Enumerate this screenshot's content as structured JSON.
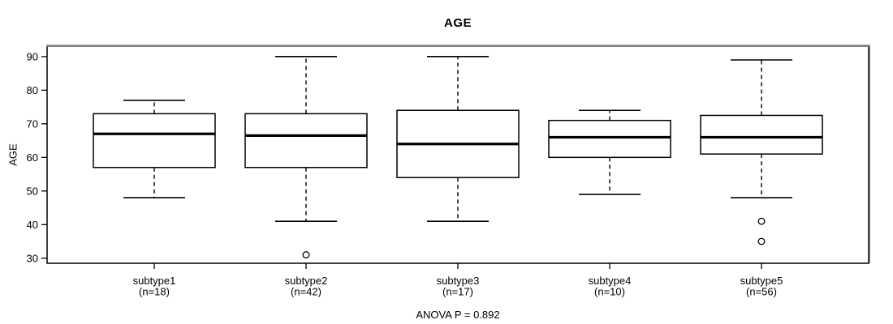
{
  "chart_data": {
    "type": "boxplot",
    "title": "AGE",
    "ylabel": "AGE",
    "xlabel": "",
    "footnote": "ANOVA P = 0.892",
    "grid": false,
    "legend": null,
    "ylim": [
      28.5,
      93.1
    ],
    "y_ticks": [
      30,
      40,
      50,
      60,
      70,
      80,
      90
    ],
    "categories": [
      {
        "label": "subtype1",
        "sublabel": "(n=18)",
        "n": 18,
        "whisker_low": 48,
        "q1": 57,
        "median": 67,
        "q3": 73,
        "whisker_high": 77,
        "outliers": []
      },
      {
        "label": "subtype2",
        "sublabel": "(n=42)",
        "n": 42,
        "whisker_low": 41,
        "q1": 57,
        "median": 66.5,
        "q3": 73,
        "whisker_high": 90,
        "outliers": [
          31
        ]
      },
      {
        "label": "subtype3",
        "sublabel": "(n=17)",
        "n": 17,
        "whisker_low": 41,
        "q1": 54,
        "median": 64,
        "q3": 74,
        "whisker_high": 90,
        "outliers": []
      },
      {
        "label": "subtype4",
        "sublabel": "(n=10)",
        "n": 10,
        "whisker_low": 49,
        "q1": 60,
        "median": 66,
        "q3": 71,
        "whisker_high": 74,
        "outliers": []
      },
      {
        "label": "subtype5",
        "sublabel": "(n=56)",
        "n": 56,
        "whisker_low": 48,
        "q1": 61,
        "median": 66,
        "q3": 72.5,
        "whisker_high": 89,
        "outliers": [
          41,
          35
        ]
      }
    ],
    "colors": {
      "background": "#ffffff",
      "box_fill": "#ffffff",
      "box_border": "#000000",
      "median": "#000000",
      "whisker": "#000000",
      "outlier": "#000000",
      "frame": "#000000",
      "frame_top": "#828282",
      "text": "#000000"
    }
  }
}
